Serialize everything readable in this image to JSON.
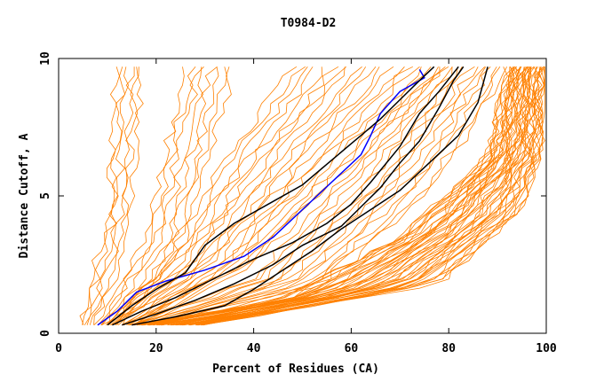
{
  "chart_data": {
    "type": "line",
    "title": "T0984-D2",
    "xlabel": "Percent of Residues (CA)",
    "ylabel": "Distance Cutoff, A",
    "xlim": [
      0,
      100
    ],
    "ylim": [
      0,
      10
    ],
    "x_ticks": [
      0,
      20,
      40,
      60,
      80,
      100
    ],
    "x_tick_labels": [
      "0",
      "20",
      "40",
      "60",
      "80",
      "100"
    ],
    "y_ticks": [
      0,
      5,
      10
    ],
    "y_tick_labels": [
      "0",
      "5",
      "10"
    ],
    "grid": false,
    "colors": {
      "background_models": "#ff8000",
      "highlight": "#0000ff",
      "reference": "#000000"
    },
    "background_bundles": [
      {
        "name": "steep-left",
        "count": 6,
        "lower": [
          [
            4,
            0.3
          ],
          [
            10,
            4.0
          ],
          [
            12,
            9.7
          ]
        ],
        "upper": [
          [
            7,
            0.3
          ],
          [
            14,
            3.0
          ],
          [
            17,
            9.7
          ]
        ]
      },
      {
        "name": "early-steep",
        "count": 8,
        "lower": [
          [
            8,
            0.3
          ],
          [
            18,
            3.5
          ],
          [
            26,
            9.7
          ]
        ],
        "upper": [
          [
            12,
            0.3
          ],
          [
            25,
            3.0
          ],
          [
            36,
            9.7
          ]
        ]
      },
      {
        "name": "mid-group",
        "count": 20,
        "lower": [
          [
            9,
            0.3
          ],
          [
            22,
            2.5
          ],
          [
            35,
            6.5
          ],
          [
            48,
            9.7
          ]
        ],
        "upper": [
          [
            16,
            0.3
          ],
          [
            40,
            2.5
          ],
          [
            62,
            6.5
          ],
          [
            80,
            9.7
          ]
        ]
      },
      {
        "name": "mid-right",
        "count": 14,
        "lower": [
          [
            14,
            0.3
          ],
          [
            40,
            2.0
          ],
          [
            60,
            6.0
          ],
          [
            78,
            9.7
          ]
        ],
        "upper": [
          [
            20,
            0.3
          ],
          [
            55,
            1.8
          ],
          [
            78,
            5.5
          ],
          [
            92,
            9.7
          ]
        ]
      },
      {
        "name": "right-bundle",
        "count": 45,
        "lower": [
          [
            16,
            0.3
          ],
          [
            45,
            1.2
          ],
          [
            70,
            3.5
          ],
          [
            88,
            6.5
          ],
          [
            92,
            9.7
          ]
        ],
        "upper": [
          [
            30,
            0.3
          ],
          [
            78,
            1.8
          ],
          [
            95,
            4.5
          ],
          [
            99,
            6.5
          ],
          [
            100,
            9.7
          ]
        ]
      }
    ],
    "series": [
      {
        "name": "highlight",
        "color": "#0000ff",
        "points": [
          [
            8,
            0.3
          ],
          [
            12,
            0.8
          ],
          [
            16,
            1.5
          ],
          [
            22,
            1.9
          ],
          [
            30,
            2.3
          ],
          [
            38,
            2.8
          ],
          [
            44,
            3.5
          ],
          [
            50,
            4.5
          ],
          [
            56,
            5.5
          ],
          [
            62,
            6.5
          ],
          [
            64,
            7.2
          ],
          [
            66,
            8.0
          ],
          [
            70,
            8.8
          ],
          [
            75,
            9.3
          ],
          [
            74,
            9.6
          ]
        ]
      },
      {
        "name": "reference-1",
        "color": "#000000",
        "points": [
          [
            10,
            0.3
          ],
          [
            15,
            1.0
          ],
          [
            20,
            1.6
          ],
          [
            26,
            2.2
          ],
          [
            30,
            3.2
          ],
          [
            36,
            4.0
          ],
          [
            44,
            4.8
          ],
          [
            50,
            5.4
          ],
          [
            56,
            6.3
          ],
          [
            62,
            7.2
          ],
          [
            66,
            7.8
          ],
          [
            70,
            8.5
          ],
          [
            74,
            9.2
          ],
          [
            77,
            9.7
          ]
        ]
      },
      {
        "name": "reference-2",
        "color": "#000000",
        "points": [
          [
            11,
            0.3
          ],
          [
            17,
            0.8
          ],
          [
            24,
            1.3
          ],
          [
            32,
            2.0
          ],
          [
            40,
            2.7
          ],
          [
            48,
            3.3
          ],
          [
            55,
            4.0
          ],
          [
            60,
            4.7
          ],
          [
            64,
            5.5
          ],
          [
            70,
            6.8
          ],
          [
            74,
            8.0
          ],
          [
            78,
            8.8
          ],
          [
            82,
            9.7
          ]
        ]
      },
      {
        "name": "reference-3",
        "color": "#000000",
        "points": [
          [
            13,
            0.3
          ],
          [
            20,
            0.7
          ],
          [
            28,
            1.2
          ],
          [
            36,
            1.8
          ],
          [
            44,
            2.5
          ],
          [
            50,
            3.2
          ],
          [
            58,
            3.9
          ],
          [
            62,
            4.6
          ],
          [
            66,
            5.3
          ],
          [
            70,
            6.2
          ],
          [
            74,
            7.0
          ],
          [
            78,
            8.2
          ],
          [
            81,
            9.2
          ],
          [
            83,
            9.7
          ]
        ]
      },
      {
        "name": "reference-4",
        "color": "#000000",
        "points": [
          [
            15,
            0.3
          ],
          [
            24,
            0.6
          ],
          [
            34,
            1.0
          ],
          [
            40,
            1.6
          ],
          [
            46,
            2.3
          ],
          [
            52,
            3.0
          ],
          [
            58,
            3.8
          ],
          [
            64,
            4.5
          ],
          [
            70,
            5.2
          ],
          [
            76,
            6.2
          ],
          [
            82,
            7.2
          ],
          [
            86,
            8.4
          ],
          [
            88,
            9.7
          ]
        ]
      }
    ]
  }
}
